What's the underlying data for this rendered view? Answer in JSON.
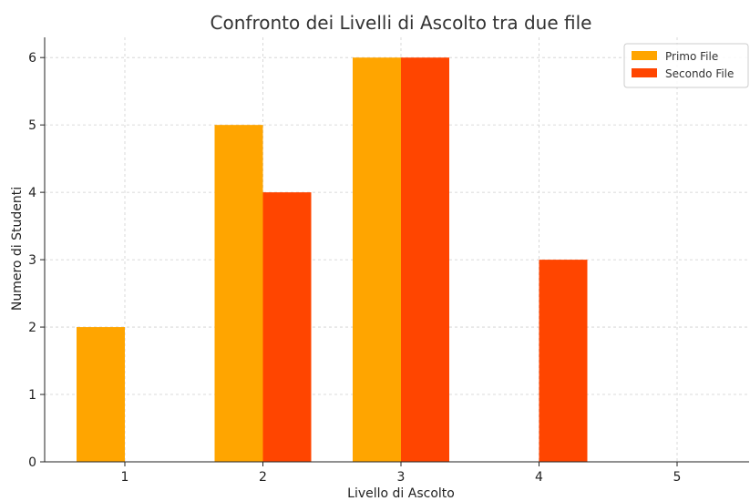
{
  "chart_data": {
    "type": "bar",
    "title": "Confronto dei Livelli di Ascolto tra due file",
    "xlabel": "Livello di Ascolto",
    "ylabel": "Numero di Studenti",
    "categories": [
      "1",
      "2",
      "3",
      "4",
      "5"
    ],
    "ylim": [
      0,
      6.3
    ],
    "yticks": [
      "0",
      "1",
      "2",
      "3",
      "4",
      "5",
      "6"
    ],
    "grid": true,
    "legend_position": "top-right",
    "series": [
      {
        "name": "Primo File",
        "color": "#FFA500",
        "values": [
          2,
          5,
          6,
          0,
          0
        ]
      },
      {
        "name": "Secondo File",
        "color": "#FF4500",
        "values": [
          0,
          4,
          6,
          3,
          0
        ]
      }
    ]
  }
}
